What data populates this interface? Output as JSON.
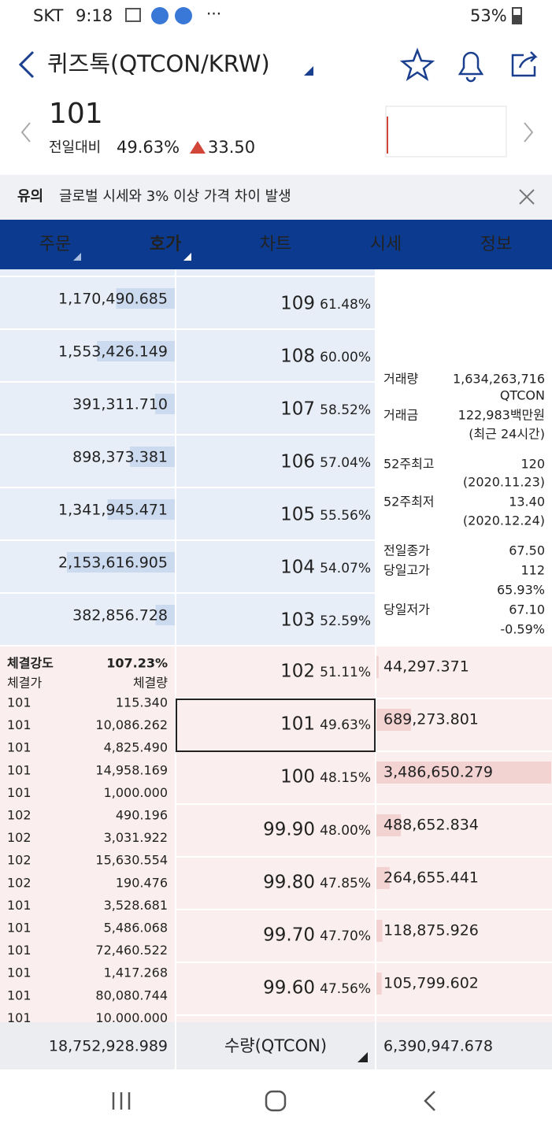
{
  "status": {
    "carrier": "SKT",
    "time": "9:18",
    "battery": "53%"
  },
  "header": {
    "title": "퀴즈톡(QTCON/KRW)"
  },
  "price": {
    "current": "101",
    "label": "전일대비",
    "change_pct": "49.63%",
    "change": "33.50"
  },
  "notice": {
    "tag": "유의",
    "text": "글로벌 시세와 3% 이상 가격 차이 발생"
  },
  "tabs": [
    "주문",
    "호가",
    "차트",
    "시세",
    "정보"
  ],
  "asks": [
    {
      "qty": "1,170,490.685",
      "price": "109",
      "pct": "61.48%"
    },
    {
      "qty": "1,553,426.149",
      "price": "108",
      "pct": "60.00%"
    },
    {
      "qty": "391,311.710",
      "price": "107",
      "pct": "58.52%"
    },
    {
      "qty": "898,373.381",
      "price": "106",
      "pct": "57.04%"
    },
    {
      "qty": "1,341,945.471",
      "price": "105",
      "pct": "55.56%"
    },
    {
      "qty": "2,153,616.905",
      "price": "104",
      "pct": "54.07%"
    },
    {
      "qty": "382,856.728",
      "price": "103",
      "pct": "52.59%"
    }
  ],
  "bids": [
    {
      "price": "102",
      "pct": "51.11%",
      "qty": "44,297.371"
    },
    {
      "price": "101",
      "pct": "49.63%",
      "qty": "689,273.801"
    },
    {
      "price": "100",
      "pct": "48.15%",
      "qty": "3,486,650.279"
    },
    {
      "price": "99.90",
      "pct": "48.00%",
      "qty": "488,652.834"
    },
    {
      "price": "99.80",
      "pct": "47.85%",
      "qty": "264,655.441"
    },
    {
      "price": "99.70",
      "pct": "47.70%",
      "qty": "118,875.926"
    },
    {
      "price": "99.60",
      "pct": "47.56%",
      "qty": "105,799.602"
    }
  ],
  "info": {
    "volume_label": "거래량",
    "volume": "1,634,263,716",
    "volume_unit": "QTCON",
    "amount_label": "거래금",
    "amount": "122,983백만원",
    "period": "(최근 24시간)",
    "high52_label": "52주최고",
    "high52": "120",
    "high52_date": "(2020.11.23)",
    "low52_label": "52주최저",
    "low52": "13.40",
    "low52_date": "(2020.12.24)",
    "prev_close_label": "전일종가",
    "prev_close": "67.50",
    "day_high_label": "당일고가",
    "day_high": "112",
    "day_high_pct": "65.93%",
    "day_low_label": "당일저가",
    "day_low": "67.10",
    "day_low_pct": "-0.59%"
  },
  "trades_panel": {
    "strength_label": "체결강도",
    "strength": "107.23%",
    "price_header": "체결가",
    "qty_header": "체결량"
  },
  "trades": [
    {
      "price": "101",
      "qty": "115.340",
      "color": "#2563b0"
    },
    {
      "price": "101",
      "qty": "10,086.262",
      "color": "#2563b0"
    },
    {
      "price": "101",
      "qty": "4,825.490",
      "color": "#2563b0"
    },
    {
      "price": "101",
      "qty": "14,958.169",
      "color": "#2563b0"
    },
    {
      "price": "101",
      "qty": "1,000.000",
      "color": "#2563b0"
    },
    {
      "price": "102",
      "qty": "490.196",
      "color": "#cf4a3e"
    },
    {
      "price": "102",
      "qty": "3,031.922",
      "color": "#cf4a3e"
    },
    {
      "price": "102",
      "qty": "15,630.554",
      "color": "#cf4a3e"
    },
    {
      "price": "102",
      "qty": "190.476",
      "color": "#cf4a3e"
    },
    {
      "price": "101",
      "qty": "3,528.681",
      "color": "#2563b0"
    },
    {
      "price": "101",
      "qty": "5,486.068",
      "color": "#2563b0"
    },
    {
      "price": "101",
      "qty": "72,460.522",
      "color": "#2563b0"
    },
    {
      "price": "101",
      "qty": "1,417.268",
      "color": "#2563b0"
    },
    {
      "price": "101",
      "qty": "80,080.744",
      "color": "#2563b0"
    },
    {
      "price": "101",
      "qty": "10,000.000",
      "color": "#2563b0"
    }
  ],
  "footer": {
    "total_ask": "18,752,928.989",
    "unit": "수량(QTCON)",
    "total_bid": "6,390,947.678"
  }
}
